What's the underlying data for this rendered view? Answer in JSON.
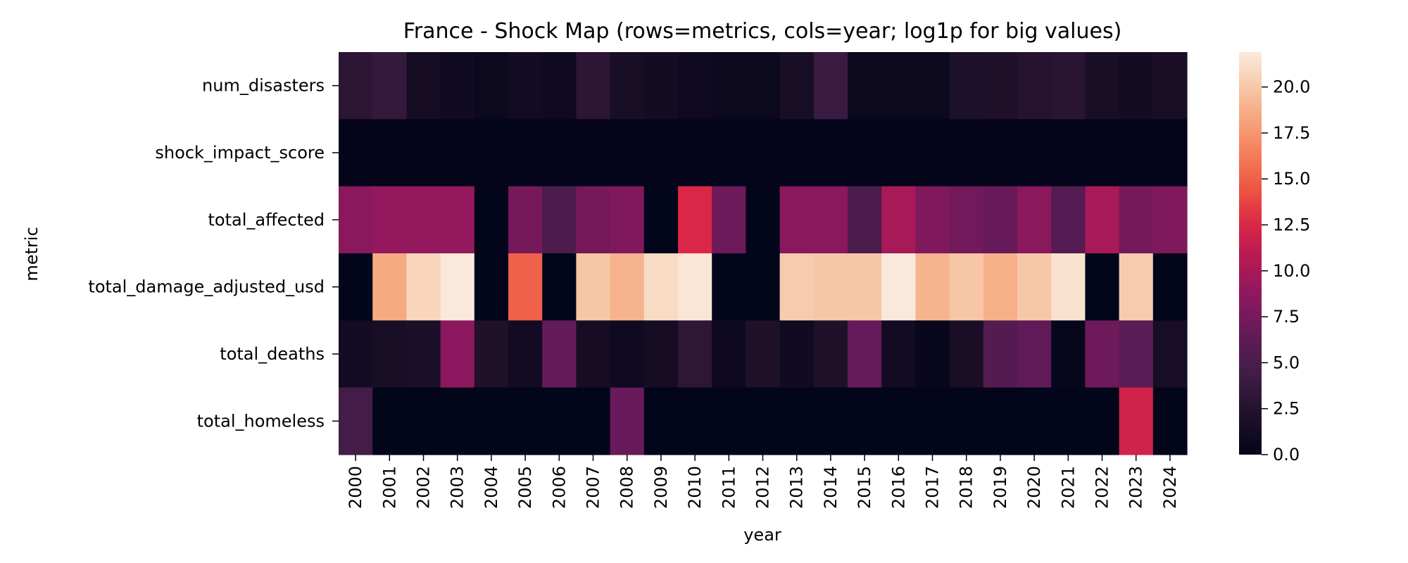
{
  "chart_data": {
    "type": "heatmap",
    "title": "France - Shock Map (rows=metrics, cols=year; log1p for big values)",
    "xlabel": "year",
    "ylabel": "metric",
    "x": [
      "2000",
      "2001",
      "2002",
      "2003",
      "2004",
      "2005",
      "2006",
      "2007",
      "2008",
      "2009",
      "2010",
      "2011",
      "2012",
      "2013",
      "2014",
      "2015",
      "2016",
      "2017",
      "2018",
      "2019",
      "2020",
      "2021",
      "2022",
      "2023",
      "2024"
    ],
    "y": [
      "num_disasters",
      "shock_impact_score",
      "total_affected",
      "total_damage_adjusted_usd",
      "total_deaths",
      "total_homeless"
    ],
    "values": [
      [
        3.0,
        3.6,
        1.4,
        1.0,
        0.7,
        1.1,
        0.9,
        3.0,
        1.6,
        1.2,
        0.9,
        0.7,
        0.7,
        1.6,
        3.9,
        0.7,
        0.7,
        0.7,
        2.0,
        2.2,
        2.5,
        2.8,
        1.6,
        1.2,
        1.7
      ],
      [
        0.05,
        0.05,
        0.05,
        0.05,
        0.05,
        0.05,
        0.05,
        0.05,
        0.05,
        0.05,
        0.05,
        0.05,
        0.05,
        0.05,
        0.05,
        0.05,
        0.05,
        0.05,
        0.05,
        0.05,
        0.05,
        0.05,
        0.05,
        0.05,
        0.05
      ],
      [
        8.5,
        9.0,
        9.0,
        9.0,
        0.0,
        7.5,
        5.0,
        7.5,
        8.0,
        0.0,
        12.5,
        7.0,
        0.0,
        8.5,
        8.5,
        5.0,
        10.0,
        8.0,
        7.3,
        6.7,
        8.5,
        5.7,
        10.0,
        7.5,
        8.0
      ],
      [
        0.0,
        18.5,
        20.7,
        21.8,
        0.0,
        15.0,
        0.0,
        19.9,
        19.0,
        21.0,
        21.6,
        0.0,
        0.0,
        20.2,
        19.9,
        19.9,
        21.8,
        19.0,
        19.9,
        18.8,
        20.0,
        21.4,
        0.0,
        20.2,
        0.0
      ],
      [
        1.3,
        1.6,
        1.9,
        8.6,
        2.1,
        1.1,
        6.5,
        1.4,
        0.9,
        1.4,
        3.1,
        0.8,
        2.1,
        1.0,
        2.1,
        6.6,
        1.1,
        0.4,
        1.7,
        5.6,
        6.3,
        0.2,
        7.1,
        6.0,
        1.5
      ],
      [
        4.5,
        0.0,
        0.0,
        0.0,
        0.0,
        0.0,
        0.0,
        0.0,
        6.8,
        0.0,
        0.0,
        0.0,
        0.0,
        0.0,
        0.0,
        0.0,
        0.0,
        0.0,
        0.0,
        0.0,
        0.0,
        0.0,
        0.0,
        12.0,
        0.0
      ]
    ],
    "colorbar": {
      "min": 0.0,
      "max": 21.9,
      "ticks": [
        "0.0",
        "2.5",
        "5.0",
        "7.5",
        "10.0",
        "12.5",
        "15.0",
        "17.5",
        "20.0"
      ]
    },
    "colormap": "rocket",
    "grid": false,
    "legend": "colorbar-right"
  }
}
